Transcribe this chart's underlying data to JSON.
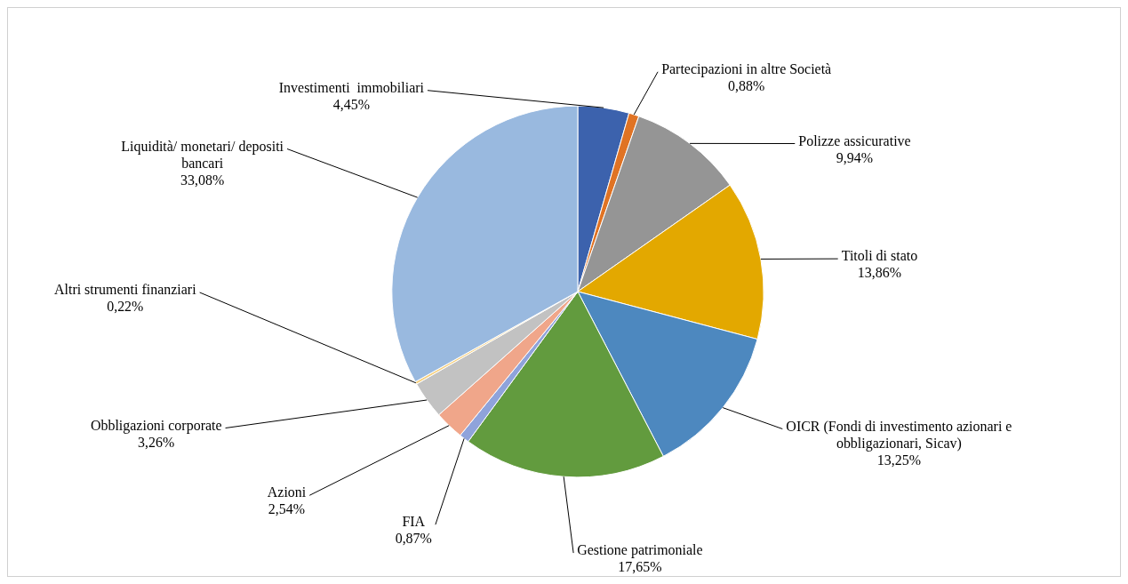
{
  "chart_data": {
    "type": "pie",
    "categories": [
      "Investimenti  immobiliari",
      "Partecipazioni in altre Società",
      "Polizze assicurative",
      "Titoli di stato",
      "OICR (Fondi di investimento azionari e obbligazionari, Sicav)",
      "Gestione patrimoniale",
      "FIA",
      "Azioni",
      "Obbligazioni corporate",
      "Altri strumenti finanziari",
      "Liquidità/ monetari/ depositi bancari"
    ],
    "values": [
      4.45,
      0.88,
      9.94,
      13.86,
      13.25,
      17.65,
      0.87,
      2.54,
      3.26,
      0.22,
      33.08
    ],
    "value_labels": [
      "4,45%",
      "0,88%",
      "9,94%",
      "13,86%",
      "13,25%",
      "17,65%",
      "0,87%",
      "2,54%",
      "3,26%",
      "0,22%",
      "33,08%"
    ],
    "colors": [
      "#3c62ad",
      "#e07324",
      "#959595",
      "#e3a800",
      "#4d88bf",
      "#629b3e",
      "#8fa3db",
      "#f0a68a",
      "#c2c2c2",
      "#f6cf7c",
      "#99b9df"
    ],
    "legend": false
  }
}
